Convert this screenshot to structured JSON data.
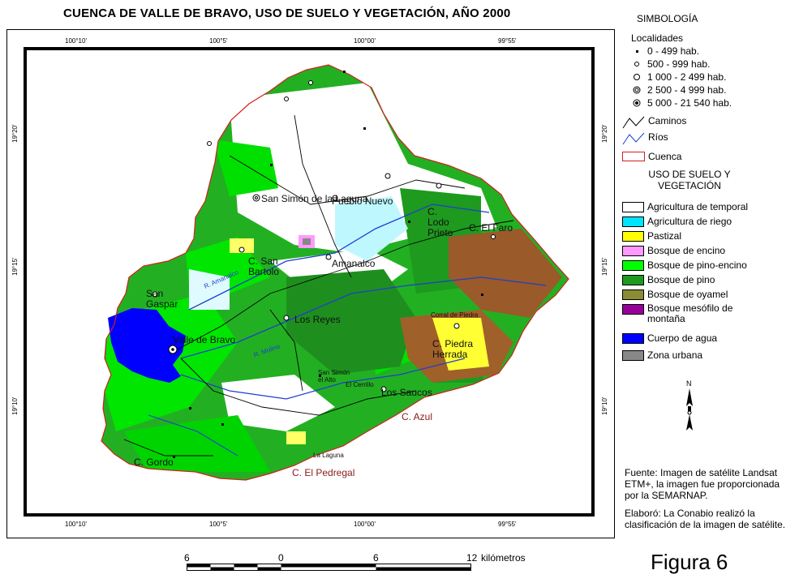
{
  "title": "CUENCA DE VALLE DE BRAVO, USO DE SUELO Y VEGETACIÓN, AÑO 2000",
  "coords": {
    "top": [
      "100°10'",
      "100°5'",
      "100°00'",
      "99°55'"
    ],
    "bottom": [
      "100°10'",
      "100°5'",
      "100°00'",
      "99°55'"
    ],
    "left": [
      "19°20'",
      "19°15'",
      "19°10'"
    ],
    "right": [
      "19°20'",
      "19°15'",
      "19°10'"
    ]
  },
  "places": {
    "san_simon": "San Simón de la Laguna",
    "pueblo_nuevo": "Pueblo Nuevo",
    "c_lodo_prieto": "C. Lodo Prieto",
    "c_el_faro": "C. El Faro",
    "c_san_bartolo": "C. San Bartolo",
    "amanalco": "Amanalco",
    "san_gaspar": "San Gaspar",
    "los_reyes": "Los Reyes",
    "valle_de_bravo": "Valle de Bravo",
    "corral_de_piedra": "Corral de Piedra",
    "c_piedra_herrada": "C. Piedra Herrada",
    "los_saucos": "Los Saucos",
    "el_cerrillo": "El Cerrillo",
    "san_simon_el_alto": "San Simón el Alto",
    "c_azul": "C. Azul",
    "c_gordo": "C. Gordo",
    "c_el_pedregal": "C. El Pedregal",
    "la_laguna": "La Laguna",
    "rio_amanalco": "R. Amanalco",
    "rio_molino": "R. Molino"
  },
  "legend": {
    "simbologia": "SIMBOLOGÍA",
    "localidades_heading": "Localidades",
    "localidades": [
      {
        "label": "0 - 499 hab.",
        "icon": "small-square-icon"
      },
      {
        "label": "500 - 999 hab.",
        "icon": "small-circle-icon"
      },
      {
        "label": "1 000 - 2 499 hab.",
        "icon": "circle-icon"
      },
      {
        "label": "2 500 - 4 999 hab.",
        "icon": "double-circle-icon"
      },
      {
        "label": "5 000 - 21 540 hab.",
        "icon": "dot-circle-icon"
      }
    ],
    "lines": [
      {
        "label": "Caminos",
        "color": "#000000"
      },
      {
        "label": "Ríos",
        "color": "#1f3fd0"
      },
      {
        "label": "Cuenca",
        "color": "#d02020"
      }
    ],
    "uso_heading": "USO DE SUELO Y VEGETACIÓN",
    "uso": [
      {
        "label": "Agricultura de temporal",
        "color": "#ffffff"
      },
      {
        "label": "Agricultura de riego",
        "color": "#00e5ff"
      },
      {
        "label": "Pastizal",
        "color": "#ffff00"
      },
      {
        "label": "Bosque de encino",
        "color": "#ff99ff"
      },
      {
        "label": "Bosque de pino-encino",
        "color": "#00ff00"
      },
      {
        "label": "Bosque de pino",
        "color": "#1e9a1e"
      },
      {
        "label": "Bosque de oyamel",
        "color": "#8b8b36"
      },
      {
        "label": "Bosque mesófilo de montaña",
        "color": "#990099"
      },
      {
        "label": "Cuerpo de agua",
        "color": "#0000ff"
      },
      {
        "label": "Zona urbana",
        "color": "#888888"
      }
    ]
  },
  "north_label": "N",
  "fuente": "Fuente: Imagen de satélite Landsat ETM+, la imagen fue proporcionada por la SEMARNAP.",
  "elaboro": "Elaboró: La Conabio realizó la clasificación de la imagen de satélite.",
  "scale": {
    "labels": [
      "6",
      "0",
      "6",
      "12"
    ],
    "unit": "kilómetros"
  },
  "figure_label": "Figura 6"
}
